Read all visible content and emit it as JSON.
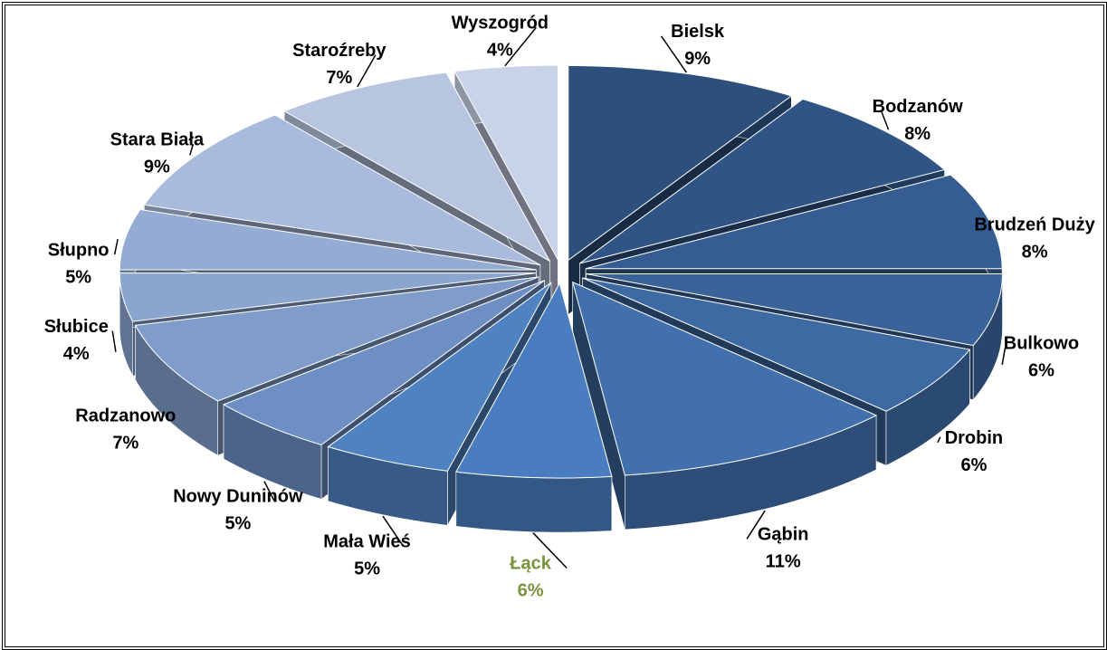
{
  "chart_data": {
    "type": "pie",
    "categories": [
      "Bielsk",
      "Bodzanów",
      "Brudzeń Duży",
      "Bulkowo",
      "Drobin",
      "Gąbin",
      "Łąck",
      "Mała Wieś",
      "Nowy Duninów",
      "Radzanowo",
      "Słubice",
      "Słupno",
      "Stara Biała",
      "Staroźreby",
      "Wyszogród"
    ],
    "values": [
      9,
      8,
      8,
      6,
      6,
      11,
      6,
      5,
      5,
      7,
      4,
      5,
      9,
      7,
      4
    ],
    "value_labels": [
      "9%",
      "8%",
      "8%",
      "6%",
      "6%",
      "11%",
      "6%",
      "5%",
      "5%",
      "7%",
      "4%",
      "5%",
      "9%",
      "7%",
      "4%"
    ],
    "colors": [
      "#2c4f7c",
      "#2f5485",
      "#355d92",
      "#3a6399",
      "#3e6aa3",
      "#4170ad",
      "#4a7dc0",
      "#4f82c0",
      "#6d8fc4",
      "#7f9cca",
      "#8aa5d0",
      "#94abd4",
      "#a9bbdc",
      "#b7c5e0",
      "#c9d3e8"
    ],
    "label_colors": [
      "#000000",
      "#000000",
      "#000000",
      "#000000",
      "#000000",
      "#000000",
      "#77933c",
      "#000000",
      "#000000",
      "#000000",
      "#000000",
      "#000000",
      "#000000",
      "#000000",
      "#000000"
    ]
  }
}
